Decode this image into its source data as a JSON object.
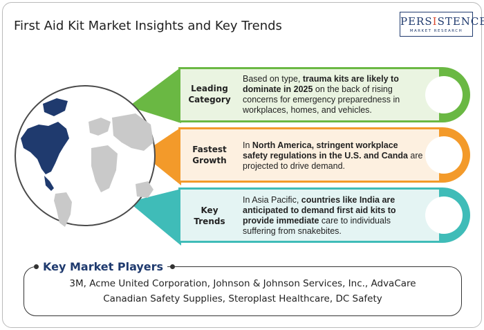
{
  "header": {
    "title": "First Aid Kit Market Insights and Key Trends"
  },
  "logo": {
    "main_prefix": "PERS",
    "main_accent": "I",
    "main_suffix": "STENCE",
    "sub": "MARKET RESEARCH"
  },
  "colors": {
    "green": "#6ab843",
    "orange": "#f39a2a",
    "teal": "#3fbcb8",
    "navy": "#1f3a6e",
    "map_gray": "#c9c9c9"
  },
  "icons": [
    "world-map-icon"
  ],
  "insights": [
    {
      "label_line1": "Leading",
      "label_line2": "Category",
      "color": "#6ab843",
      "t1": "Based on type, ",
      "t2": "trauma kits are likely to dominate in 2025",
      "t3": " on the back of rising concerns for emergency preparedness in workplaces, homes, and vehicles."
    },
    {
      "label_line1": "Fastest",
      "label_line2": "Growth",
      "color": "#f39a2a",
      "t1": "In ",
      "t2": "North America, stringent workplace safety regulations in the U.S. and Canda",
      "t3": " are projected to drive demand."
    },
    {
      "label_line1": "Key",
      "label_line2": "Trends",
      "color": "#3fbcb8",
      "t1": "In Asia Pacific, ",
      "t2": "countries like India are anticipated to demand first aid kits to provide immediate",
      "t3": " care to individuals suffering from snakebites."
    }
  ],
  "players": {
    "title": "Key Market Players",
    "line1": "3M, Acme United Corporation, Johnson & Johnson Services, Inc., AdvaCare",
    "line2": "Canadian Safety Supplies, Steroplast Healthcare, DC Safety"
  }
}
